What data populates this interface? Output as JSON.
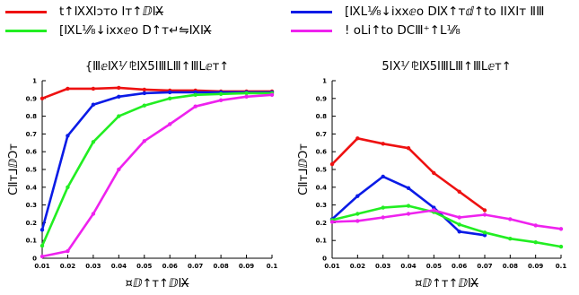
{
  "legend": [
    {
      "name": "t↑ⅨⅪↄто Iт↑ⅅⅨ̶",
      "color": "#ee1111"
    },
    {
      "name": "[ⅨⅬ⅟⁄₈↓ixxⅇo ⅮⅨ↑тⅆ↑to IIⅩIт ⅡⅢ",
      "color": "#0a1be6"
    },
    {
      "name": "[ⅨⅬ⅟⁄₈↓ixxⅇo D↑т↵⇋ⅨⅨ̶",
      "color": "#22ee22"
    },
    {
      "name": "! oⅬi↑to DⅭⅢ⁺↑Ⅼ⅟⁄₈",
      "color": "#ee22ee"
    }
  ],
  "chart_data": [
    {
      "type": "line",
      "title": "{ⅢⅇⅨ⅟ ⅊Ⅸ5ⅠⅢⅬⅢ↑ⅢⅬⅇт↑",
      "xlabel": "¤ⅅ↑т↑ⅅⅨ̶",
      "ylabel": "ⅭⅡт⅃ⅅↃт",
      "x": [
        0.01,
        0.02,
        0.03,
        0.04,
        0.05,
        0.06,
        0.07,
        0.08,
        0.09,
        0.1
      ],
      "xticks": [
        "0.01",
        "0.02",
        "0.03",
        "0.04",
        "0.05",
        "0.06",
        "0.07",
        "0.08",
        "0.09",
        "0.1"
      ],
      "xlim": [
        0.01,
        0.1
      ],
      "ylim": [
        0,
        1
      ],
      "yticks": [
        "0",
        "0.1",
        "0.2",
        "0.3",
        "0.4",
        "0.5",
        "0.6",
        "0.7",
        "0.8",
        "0.9",
        "1"
      ],
      "series": [
        {
          "color": "#ee1111",
          "values": [
            0.9,
            0.955,
            0.955,
            0.96,
            0.95,
            0.945,
            0.945,
            0.94,
            0.94,
            0.94
          ]
        },
        {
          "color": "#0a1be6",
          "values": [
            0.16,
            0.69,
            0.865,
            0.91,
            0.93,
            0.935,
            0.935,
            0.935,
            0.935,
            0.935
          ]
        },
        {
          "color": "#22ee22",
          "values": [
            0.07,
            0.4,
            0.655,
            0.8,
            0.86,
            0.9,
            0.92,
            0.925,
            0.93,
            0.93
          ]
        },
        {
          "color": "#ee22ee",
          "values": [
            0.01,
            0.04,
            0.25,
            0.5,
            0.66,
            0.755,
            0.855,
            0.89,
            0.91,
            0.92
          ]
        }
      ]
    },
    {
      "type": "line",
      "title": "5ⅠⅩ⅟ ⅊Ⅸ5ⅠⅢⅬⅢ↑ⅢⅬⅇт↑",
      "xlabel": "¤ⅅ↑т↑ⅅⅨ̶",
      "ylabel": "ⅭⅡт⅃ⅅↃт",
      "x": [
        0.01,
        0.02,
        0.03,
        0.04,
        0.05,
        0.06,
        0.07,
        0.08,
        0.09,
        0.1
      ],
      "xticks": [
        "0.01",
        "0.02",
        "0.03",
        "0.04",
        "0.05",
        "0.06",
        "0.07",
        "0.08",
        "0.09",
        "0.1"
      ],
      "xlim": [
        0.01,
        0.1
      ],
      "ylim": [
        0,
        1
      ],
      "yticks": [
        "0",
        "0.1",
        "0.2",
        "0.3",
        "0.4",
        "0.5",
        "0.6",
        "0.7",
        "0.8",
        "0.9",
        "1"
      ],
      "series": [
        {
          "color": "#ee1111",
          "values": [
            0.53,
            0.675,
            0.645,
            0.62,
            0.48,
            0.375,
            0.27,
            null,
            null,
            null
          ]
        },
        {
          "color": "#0a1be6",
          "values": [
            0.22,
            0.35,
            0.46,
            0.395,
            0.285,
            0.15,
            0.13,
            null,
            null,
            null
          ]
        },
        {
          "color": "#22ee22",
          "values": [
            0.215,
            0.25,
            0.285,
            0.295,
            0.26,
            0.19,
            0.145,
            0.11,
            0.09,
            0.065
          ]
        },
        {
          "color": "#ee22ee",
          "values": [
            0.205,
            0.21,
            0.23,
            0.25,
            0.27,
            0.23,
            0.245,
            0.22,
            0.185,
            0.165
          ]
        }
      ]
    }
  ]
}
